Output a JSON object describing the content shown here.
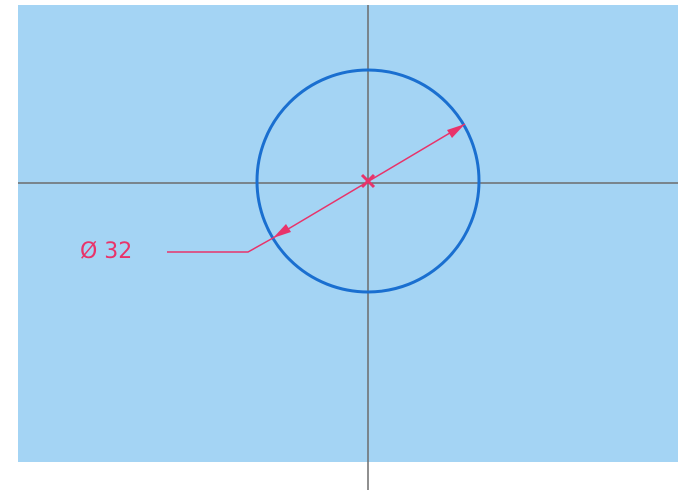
{
  "dimension": {
    "label": "Ø 32"
  }
}
